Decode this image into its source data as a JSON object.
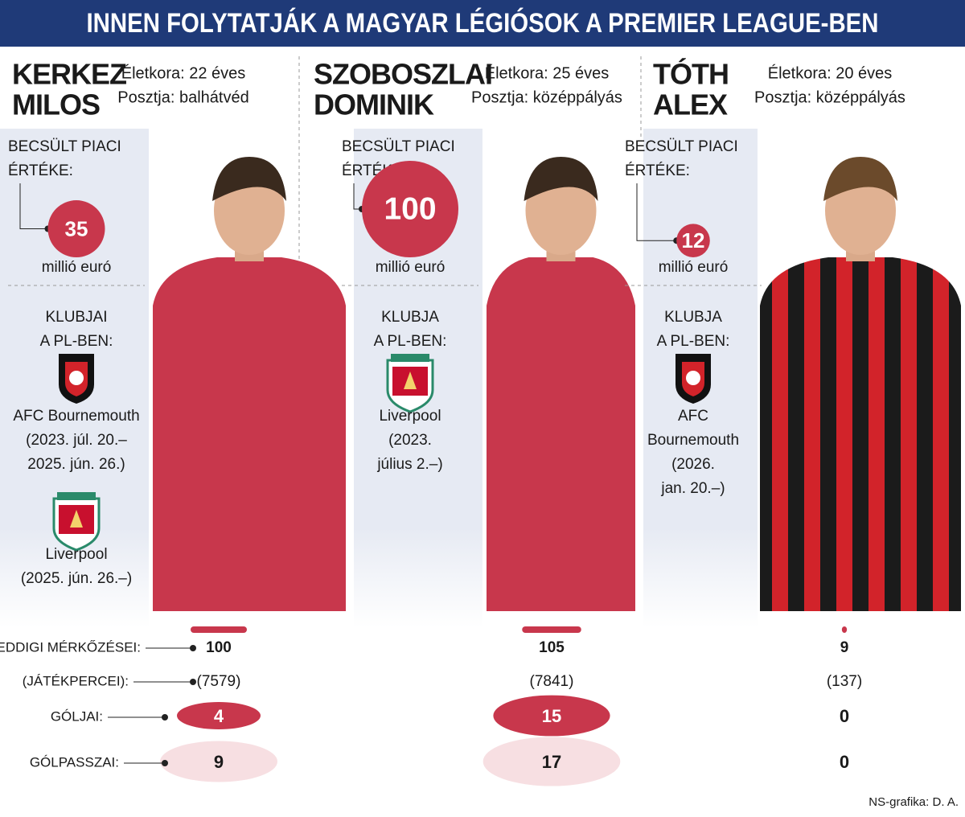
{
  "title": "INNEN FOLYTATJÁK A MAGYAR LÉGIÓSOK A PREMIER LEAGUE-BEN",
  "value_label": [
    "BECSÜLT PIACI",
    "ÉRTÉKE:"
  ],
  "value_unit": "millió euró",
  "stat_labels": [
    "EDDIGI MÉRKŐZÉSEI:",
    "(JÁTÉKPERCEI):",
    "GÓLJAI:",
    "GÓLPASSZAI:"
  ],
  "players": [
    {
      "name": [
        "KERKEZ",
        "MILOS"
      ],
      "age": "Életkora: 22 éves",
      "position": "Posztja: balhátvéd",
      "market_value": 35,
      "clubs_label": [
        "KLUBJAI",
        "A PL-BEN:"
      ],
      "clubs": [
        {
          "club": "bournemouth",
          "name": [
            "AFC Bournemouth"
          ],
          "period": [
            "(2023. júl. 20.–",
            "2025. jún. 26.)"
          ]
        },
        {
          "club": "liverpool",
          "name": [
            "Liverpool"
          ],
          "period": [
            "(2025. jún. 26.–)"
          ]
        }
      ],
      "matches": 100,
      "minutes": "(7579)",
      "goals": 4,
      "assists": 9
    },
    {
      "name": [
        "SZOBOSZLAI",
        "DOMINIK"
      ],
      "age": "Életkora: 25 éves",
      "position": "Posztja: középpályás",
      "market_value": 100,
      "clubs_label": [
        "KLUBJA",
        "A PL-BEN:"
      ],
      "clubs": [
        {
          "club": "liverpool",
          "name": [
            "Liverpool"
          ],
          "period": [
            "(2023.",
            "július 2.–)"
          ]
        }
      ],
      "matches": 105,
      "minutes": "(7841)",
      "goals": 15,
      "assists": 17
    },
    {
      "name": [
        "TÓTH",
        "ALEX"
      ],
      "age": "Életkora: 20 éves",
      "position": "Posztja: középpályás",
      "market_value": 12,
      "clubs_label": [
        "KLUBJA",
        "A PL-BEN:"
      ],
      "clubs": [
        {
          "club": "bournemouth",
          "name": [
            "AFC",
            "Bournemouth"
          ],
          "period": [
            "(2026.",
            "jan. 20.–)"
          ]
        }
      ],
      "matches": 9,
      "minutes": "(137)",
      "goals": 0,
      "assists": 0
    }
  ],
  "credit": "NS-grafika: D. A."
}
